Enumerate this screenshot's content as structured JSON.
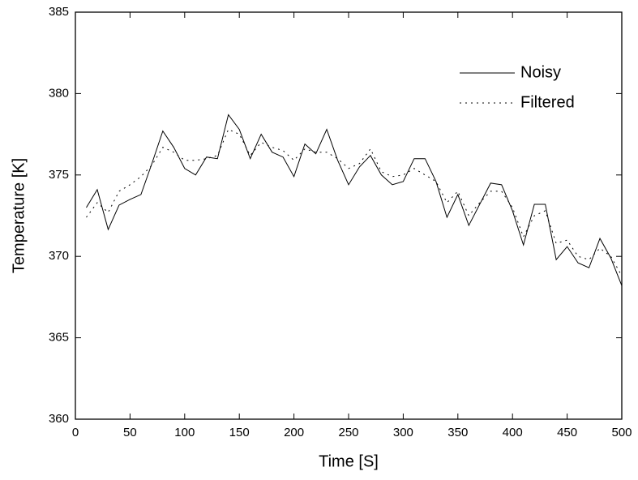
{
  "chart_data": {
    "type": "line",
    "xlabel": "Time [S]",
    "ylabel": "Temperature [K]",
    "x": [
      10,
      20,
      30,
      40,
      50,
      60,
      70,
      80,
      90,
      100,
      110,
      120,
      130,
      140,
      150,
      160,
      170,
      180,
      190,
      200,
      210,
      220,
      230,
      240,
      250,
      260,
      270,
      280,
      290,
      300,
      310,
      320,
      330,
      340,
      350,
      360,
      370,
      380,
      390,
      400,
      410,
      420,
      430,
      440,
      450,
      460,
      470,
      480,
      490,
      500
    ],
    "series": [
      {
        "name": "Noisy",
        "color": "#000000",
        "style": "solid",
        "values": [
          373.0,
          374.1,
          371.65,
          373.15,
          373.5,
          373.8,
          375.7,
          377.7,
          376.7,
          375.4,
          375.0,
          376.1,
          376.0,
          378.7,
          377.8,
          376.0,
          377.5,
          376.4,
          376.1,
          374.9,
          376.9,
          376.3,
          377.8,
          375.9,
          374.4,
          375.5,
          376.2,
          375.0,
          374.4,
          374.6,
          376.0,
          376.0,
          374.6,
          372.4,
          373.8,
          371.9,
          373.2,
          374.5,
          374.4,
          372.8,
          370.7,
          373.2,
          373.2,
          369.8,
          370.6,
          369.6,
          369.3,
          371.1,
          369.9,
          368.2
        ]
      },
      {
        "name": "Filtered",
        "color": "#000000",
        "style": "dotted",
        "values": [
          372.4,
          373.3,
          372.7,
          374.0,
          374.4,
          374.9,
          375.6,
          376.7,
          376.4,
          375.9,
          375.9,
          376.0,
          376.2,
          377.8,
          377.5,
          376.2,
          377.0,
          376.7,
          376.5,
          375.9,
          376.6,
          376.4,
          376.4,
          376.0,
          375.4,
          375.7,
          376.6,
          375.2,
          374.9,
          375.0,
          375.4,
          375.0,
          374.6,
          373.3,
          374.0,
          372.5,
          373.3,
          374.0,
          374.0,
          373.0,
          371.2,
          372.5,
          372.8,
          370.8,
          371.0,
          370.0,
          369.8,
          370.5,
          370.0,
          368.8
        ]
      }
    ],
    "xlim": [
      0,
      500
    ],
    "xticks": [
      0,
      50,
      100,
      150,
      200,
      250,
      300,
      350,
      400,
      450,
      500
    ],
    "ylim": [
      360,
      385
    ],
    "yticks": [
      360,
      365,
      370,
      375,
      380,
      385
    ],
    "legend": "top-right"
  }
}
